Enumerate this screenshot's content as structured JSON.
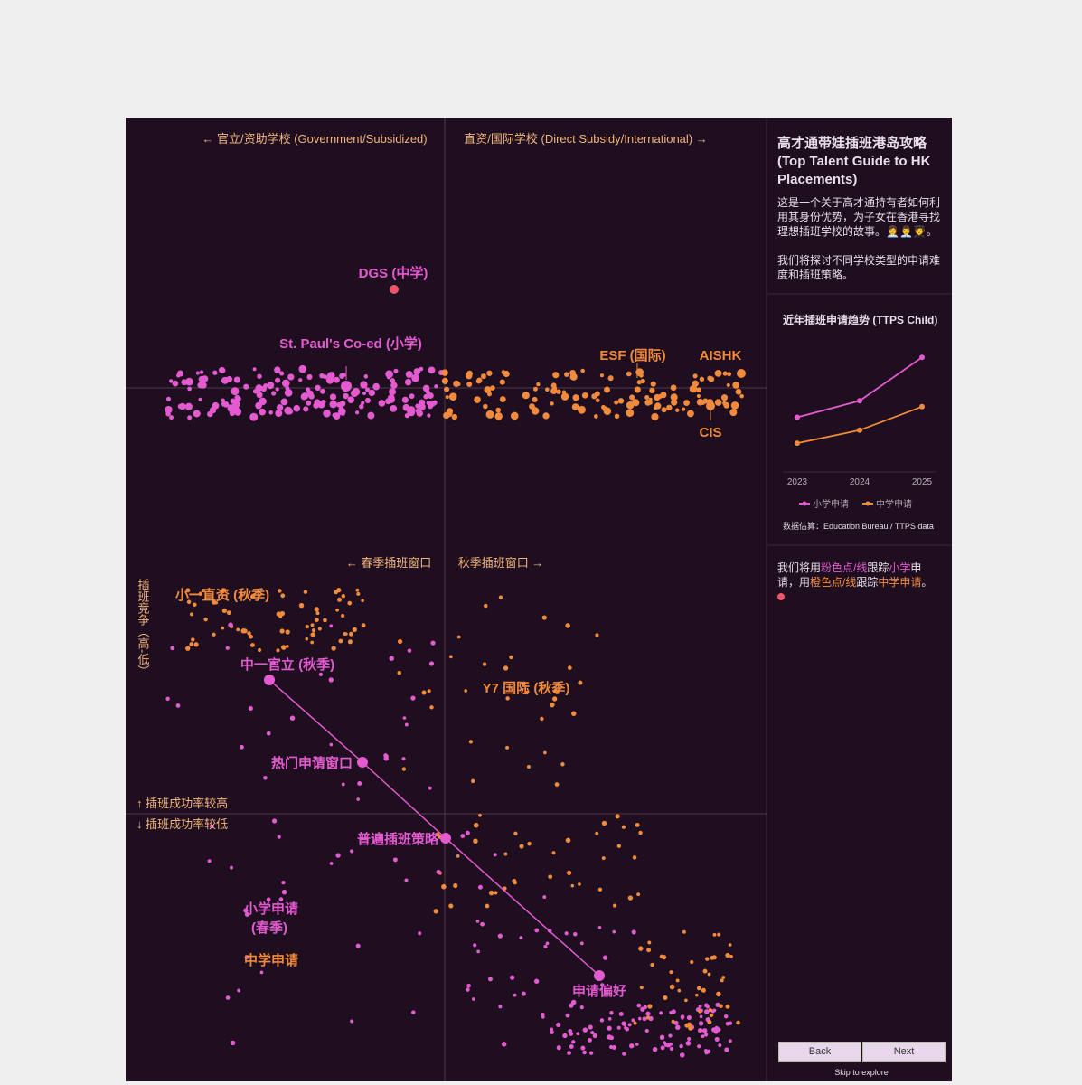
{
  "story": {
    "top_left_axis": "← 官立/资助学校 (Government/Subsidized)",
    "top_right_axis": "直资/国际学校 (Direct Subsidy/International) →",
    "dgs": "DGS (中学)",
    "st_pauls": "St. Paul's Co-ed (小学)",
    "esf": "ESF (国际)",
    "aishk": "AISHK",
    "cis": "CIS",
    "spring_window": "← 春季插班窗口",
    "autumn_window": "秋季插班窗口 →",
    "competition": "插班竞争（高-低）",
    "higher_success": "↑ 插班成功率较高",
    "lower_success": "↓ 插班成功率较低",
    "p1_ds": "小一直资 (秋季)",
    "s1_gov": "中一官立 (秋季)",
    "y7_intl": "Y7 国际 (秋季)",
    "hot_window": "热门申请窗口",
    "common_strategy": "普遍插班策略",
    "preference": "申请偏好",
    "primary_spring_1": "小学申请",
    "primary_spring_2": "(春季)",
    "secondary": "中学申请"
  },
  "sidebar": {
    "title": "高才通带娃插班港岛攻略 (Top Talent Guide to HK Placements)",
    "intro": "这是一个关于高才通持有者如何利用其身份优势，为子女在香港寻找理想插班学校的故事。👩‍💼👨‍💼🧑‍🎓。",
    "intro_2": "我们将探讨不同学校类型的申请难度和插班策略。",
    "source": "数据估算：Education Bureau / TTPS data",
    "note_parts": [
      "我们将用",
      "粉色点/线",
      "跟踪",
      "小学",
      "申请，用",
      "橙色点/线",
      "跟踪",
      "中学申请",
      "。"
    ],
    "back": "Back",
    "next": "Next",
    "skip": "Skip to explore"
  },
  "chart_data": {
    "type": "line",
    "title": "近年插班申请趋势 (TTPS Child)",
    "categories": [
      "2023",
      "2024",
      "2025"
    ],
    "series": [
      {
        "name": "小学申请",
        "color": "#e45ad0",
        "values": [
          45,
          59,
          96
        ]
      },
      {
        "name": "中学申请",
        "color": "#f08a3c",
        "values": [
          23,
          34,
          54
        ]
      }
    ],
    "ylim": [
      0,
      100
    ]
  }
}
